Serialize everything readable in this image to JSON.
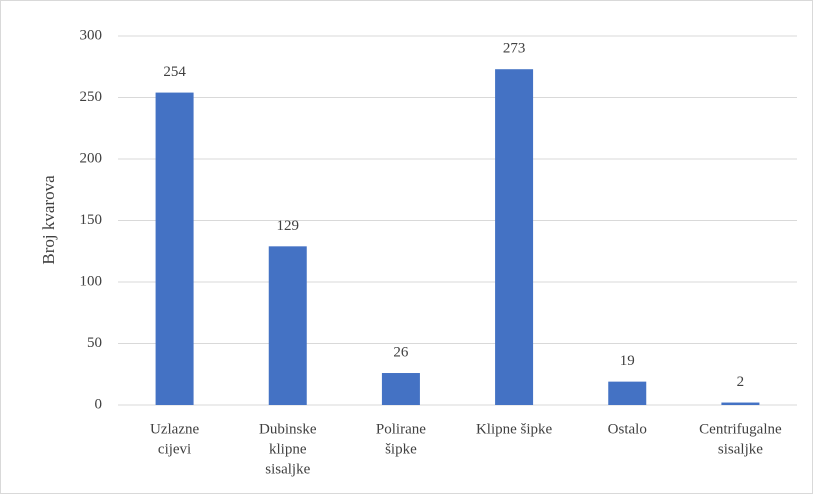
{
  "chart_data": {
    "type": "bar",
    "y_label": "Broj kvarova",
    "categories": [
      [
        "Uzlazne",
        "cijevi"
      ],
      [
        "Dubinske",
        "klipne",
        "sisaljke"
      ],
      [
        "Polirane",
        "šipke"
      ],
      [
        "Klipne šipke"
      ],
      [
        "Ostalo"
      ],
      [
        "Centrifugalne",
        "sisaljke"
      ]
    ],
    "values": [
      254,
      129,
      26,
      273,
      19,
      2
    ],
    "color": "#4472c4",
    "ylim": [
      0,
      300
    ],
    "yticks": [
      0,
      50,
      100,
      150,
      200,
      250,
      300
    ],
    "grid": true
  }
}
